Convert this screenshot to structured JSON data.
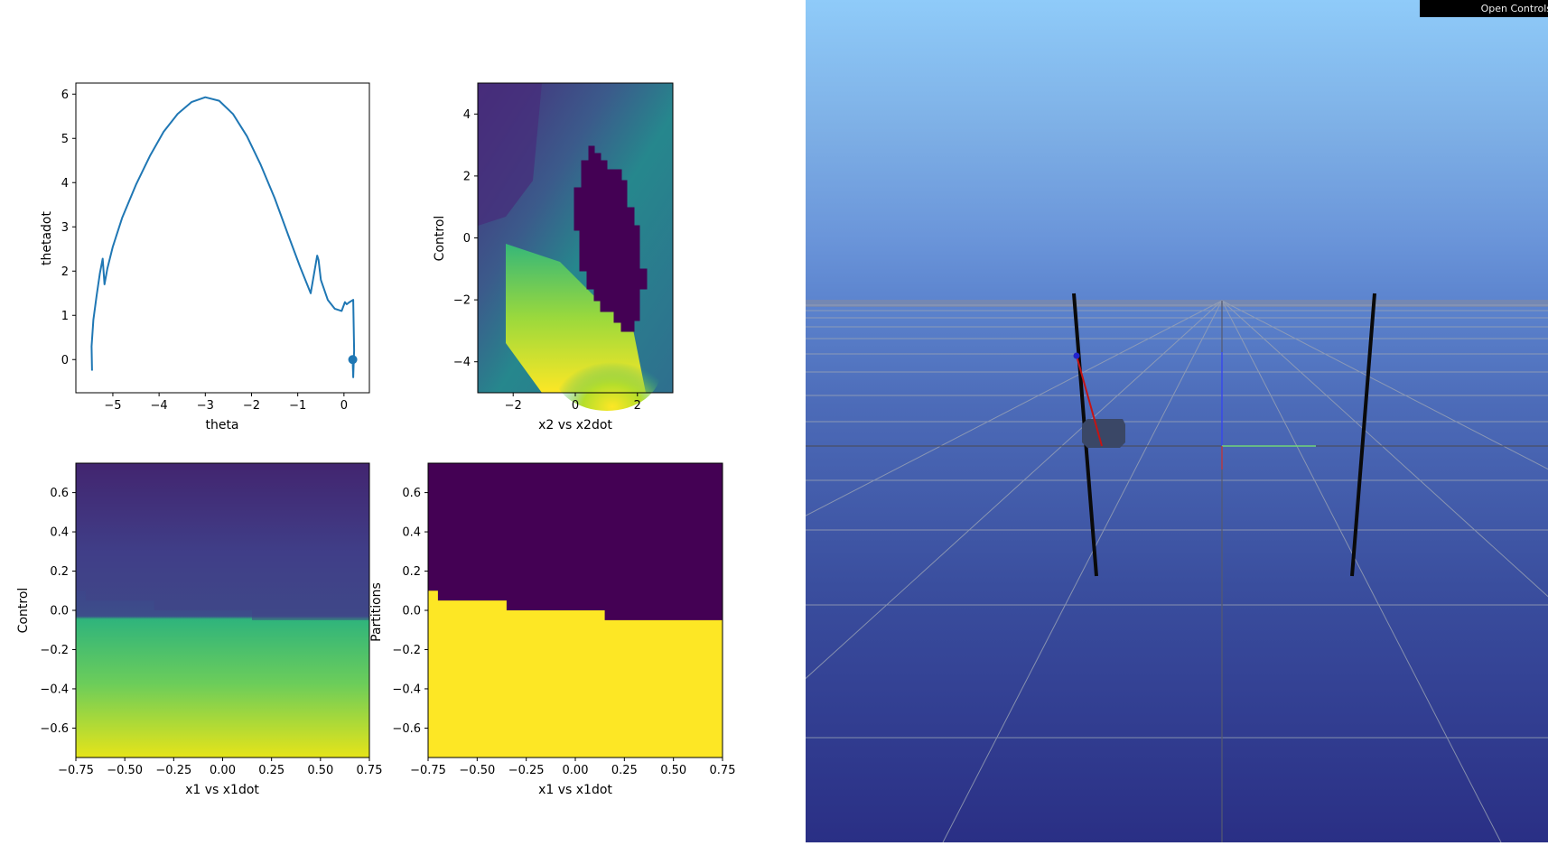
{
  "plots": [
    {
      "name": "phase-plot",
      "xlabel": "theta",
      "ylabel": "thetadot",
      "xticks": [
        "−5",
        "−4",
        "−3",
        "−2",
        "−1",
        "0"
      ],
      "yticks": [
        "0",
        "1",
        "2",
        "3",
        "4",
        "5",
        "6"
      ],
      "chart_data": {
        "type": "line",
        "xlim": [
          -5.8,
          0.55
        ],
        "ylim": [
          -0.75,
          6.25
        ],
        "color": "#1f77b4",
        "x": [
          -5.45,
          -5.46,
          -5.42,
          -5.35,
          -5.28,
          -5.22,
          -5.18,
          -5.12,
          -5.0,
          -4.8,
          -4.5,
          -4.2,
          -3.9,
          -3.6,
          -3.3,
          -3.0,
          -2.7,
          -2.4,
          -2.1,
          -1.8,
          -1.5,
          -1.2,
          -0.95,
          -0.72,
          -0.58,
          -0.55,
          -0.5,
          -0.35,
          -0.2,
          -0.05,
          0.02,
          0.06,
          0.12,
          0.2,
          0.22,
          0.2,
          0.19
        ],
        "y": [
          -0.25,
          0.3,
          0.9,
          1.45,
          1.95,
          2.28,
          1.7,
          2.05,
          2.55,
          3.2,
          3.95,
          4.6,
          5.15,
          5.55,
          5.82,
          5.93,
          5.85,
          5.55,
          5.05,
          4.4,
          3.65,
          2.8,
          2.1,
          1.5,
          2.35,
          2.25,
          1.8,
          1.35,
          1.15,
          1.1,
          1.3,
          1.25,
          1.3,
          1.35,
          0.2,
          -0.4,
          -0.1
        ],
        "marker": {
          "x": 0.19,
          "y": 0.0
        }
      }
    },
    {
      "name": "control-heatmap-x2",
      "xlabel": "x2 vs x2dot",
      "ylabel": "Control",
      "xticks": [
        "−2",
        "0",
        "2"
      ],
      "yticks": [
        "−4",
        "−2",
        "0",
        "2",
        "4"
      ],
      "chart_data": {
        "type": "heatmap",
        "xlim": [
          -3.14,
          3.14
        ],
        "ylim": [
          -5,
          5
        ],
        "colormap": "viridis"
      }
    },
    {
      "name": "control-heatmap-x1",
      "xlabel": "x1 vs x1dot",
      "ylabel": "Control",
      "xticks": [
        "−0.75",
        "−0.50",
        "−0.25",
        "0.00",
        "0.25",
        "0.50",
        "0.75"
      ],
      "yticks": [
        "−0.6",
        "−0.4",
        "−0.2",
        "0.0",
        "0.2",
        "0.4",
        "0.6"
      ],
      "chart_data": {
        "type": "heatmap",
        "xlim": [
          -0.75,
          0.75
        ],
        "ylim": [
          -0.75,
          0.75
        ],
        "colormap": "viridis"
      }
    },
    {
      "name": "partitions-heatmap-x1",
      "xlabel": "x1 vs x1dot",
      "ylabel": "Partitions",
      "xticks": [
        "−0.75",
        "−0.50",
        "−0.25",
        "0.00",
        "0.25",
        "0.50",
        "0.75"
      ],
      "yticks": [
        "−0.6",
        "−0.4",
        "−0.2",
        "0.0",
        "0.2",
        "0.4",
        "0.6"
      ],
      "chart_data": {
        "type": "heatmap",
        "xlim": [
          -0.75,
          0.75
        ],
        "ylim": [
          -0.75,
          0.75
        ],
        "colors": [
          "#440154",
          "#fde725"
        ],
        "boundary": {
          "x": [
            -0.75,
            -0.7,
            -0.7,
            -0.35,
            -0.35,
            0.15,
            0.15,
            0.75
          ],
          "y": [
            0.1,
            0.1,
            0.05,
            0.05,
            0.0,
            0.0,
            -0.05,
            -0.05
          ]
        }
      }
    }
  ],
  "scene": {
    "controls_button": "Open Controls",
    "sky_top": "#8fcbf9",
    "sky_bottom": "#2a2f85"
  }
}
